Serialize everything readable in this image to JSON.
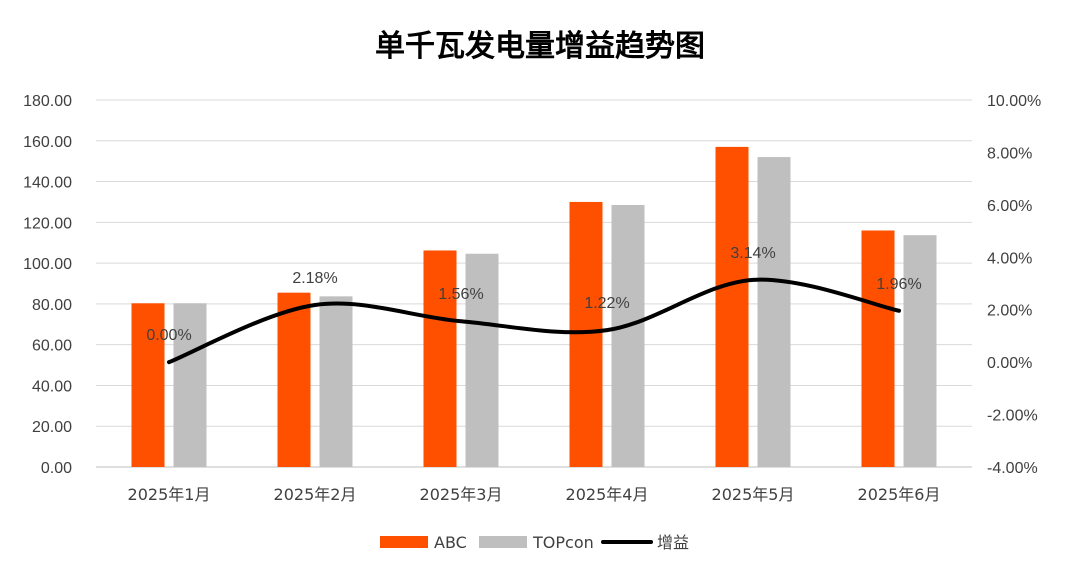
{
  "chart_data": {
    "type": "bar",
    "title": "单千瓦发电量增益趋势图",
    "categories": [
      "2025年1月",
      "2025年2月",
      "2025年3月",
      "2025年4月",
      "2025年5月",
      "2025年6月"
    ],
    "series": [
      {
        "name": "ABC",
        "kind": "bar",
        "axis": "left",
        "color": "#FF5000",
        "values": [
          80.3,
          85.5,
          106.2,
          130.0,
          157.0,
          116.0
        ]
      },
      {
        "name": "TOPcon",
        "kind": "bar",
        "axis": "left",
        "color": "#BFBFBF",
        "values": [
          80.3,
          83.7,
          104.6,
          128.5,
          152.0,
          113.7
        ]
      },
      {
        "name": "增益",
        "kind": "line",
        "axis": "right",
        "color": "#000000",
        "smooth": true,
        "values": [
          0.0,
          2.18,
          1.56,
          1.22,
          3.14,
          1.96
        ],
        "labels": [
          "0.00%",
          "2.18%",
          "1.56%",
          "1.22%",
          "3.14%",
          "1.96%"
        ]
      }
    ],
    "y_left": {
      "min": 0,
      "max": 180,
      "step": 20,
      "ticks": [
        "0.00",
        "20.00",
        "40.00",
        "60.00",
        "80.00",
        "100.00",
        "120.00",
        "140.00",
        "160.00",
        "180.00"
      ]
    },
    "y_right": {
      "min": -4,
      "max": 10,
      "step": 2,
      "ticks": [
        "-4.00%",
        "-2.00%",
        "0.00%",
        "2.00%",
        "4.00%",
        "6.00%",
        "8.00%",
        "10.00%"
      ]
    },
    "grid": true,
    "legend_position": "bottom"
  }
}
